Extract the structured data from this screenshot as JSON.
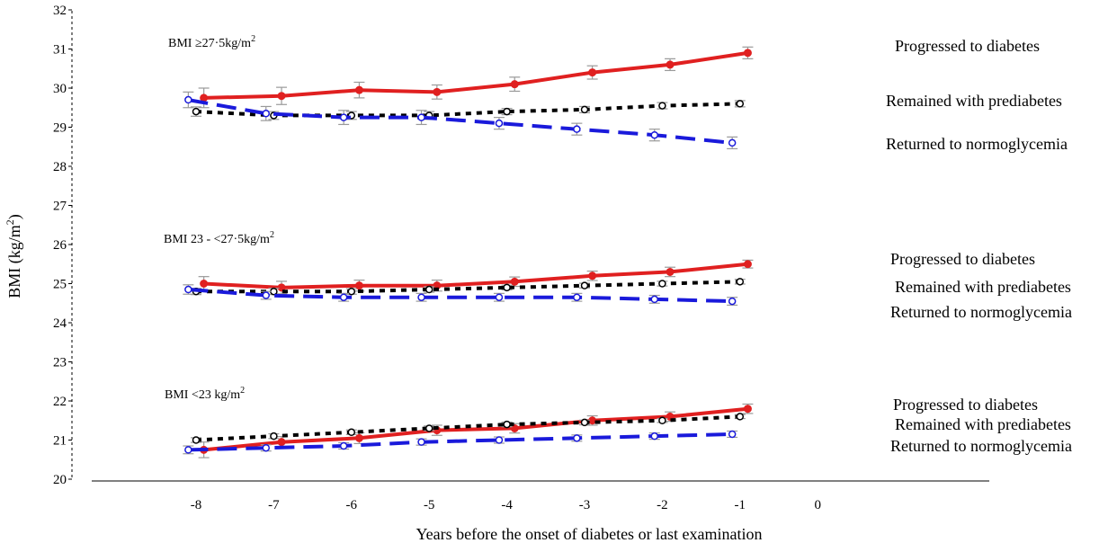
{
  "chart_data": {
    "type": "line",
    "xlabel": "Years before the onset of diabetes or last examination",
    "ylabel": "BMI (kg/m²)",
    "ylabel_text": "BMI (kg/m",
    "ylabel_sup": "2",
    "ylabel_close": ")",
    "xlim": [
      -8.5,
      0.3
    ],
    "ylim": [
      20,
      32
    ],
    "x_ticks": [
      -8,
      -7,
      -6,
      -5,
      -4,
      -3,
      -2,
      -1,
      0
    ],
    "x_tick_labels": [
      "-8",
      "-7",
      "-6",
      "-5",
      "-4",
      "-3",
      "-2",
      "-1",
      "0"
    ],
    "y_ticks": [
      20,
      21,
      22,
      23,
      24,
      25,
      26,
      27,
      28,
      29,
      30,
      31,
      32
    ],
    "y_tick_labels": [
      "20",
      "21",
      "22",
      "23",
      "24",
      "25",
      "26",
      "27",
      "28",
      "29",
      "30",
      "31",
      "32"
    ],
    "grid": false,
    "colors": {
      "progressed": "#e02020",
      "remained": "#000000",
      "returned": "#1a1adb",
      "errorbar": "#9a9a9a"
    },
    "groups": [
      {
        "label_text": "BMI ≥27·5kg/m",
        "label_sup": "2",
        "series": [
          {
            "name": "Progressed to diabetes",
            "style": "progressed",
            "x": [
              -7.9,
              -6.9,
              -5.9,
              -4.9,
              -3.9,
              -2.9,
              -1.9,
              -0.9
            ],
            "y": [
              29.75,
              29.8,
              29.95,
              29.9,
              30.1,
              30.4,
              30.6,
              30.9
            ],
            "err": [
              0.25,
              0.22,
              0.2,
              0.18,
              0.18,
              0.17,
              0.15,
              0.15
            ]
          },
          {
            "name": "Remained with prediabetes",
            "style": "remained",
            "x": [
              -8,
              -7,
              -6,
              -5,
              -4,
              -3,
              -2,
              -1
            ],
            "y": [
              29.4,
              29.3,
              29.3,
              29.3,
              29.4,
              29.45,
              29.55,
              29.6
            ],
            "err": [
              0.12,
              0.1,
              0.1,
              0.1,
              0.08,
              0.08,
              0.08,
              0.08
            ]
          },
          {
            "name": "Returned to normoglycemia",
            "style": "returned",
            "x": [
              -8.1,
              -7.1,
              -6.1,
              -5.1,
              -4.1,
              -3.1,
              -2.1,
              -1.1
            ],
            "y": [
              29.7,
              29.35,
              29.25,
              29.25,
              29.1,
              28.95,
              28.8,
              28.6
            ],
            "err": [
              0.2,
              0.18,
              0.18,
              0.18,
              0.15,
              0.15,
              0.15,
              0.15
            ]
          }
        ]
      },
      {
        "label_text": "BMI 23 - <27·5kg/m",
        "label_sup": "2",
        "series": [
          {
            "name": "Progressed to diabetes",
            "style": "progressed",
            "x": [
              -7.9,
              -6.9,
              -5.9,
              -4.9,
              -3.9,
              -2.9,
              -1.9,
              -0.9
            ],
            "y": [
              25.0,
              24.9,
              24.95,
              24.95,
              25.05,
              25.2,
              25.3,
              25.5
            ],
            "err": [
              0.18,
              0.16,
              0.14,
              0.14,
              0.12,
              0.12,
              0.12,
              0.1
            ]
          },
          {
            "name": "Remained with prediabetes",
            "style": "remained",
            "x": [
              -8,
              -7,
              -6,
              -5,
              -4,
              -3,
              -2,
              -1
            ],
            "y": [
              24.8,
              24.8,
              24.8,
              24.85,
              24.9,
              24.95,
              25.0,
              25.05
            ],
            "err": [
              0.08,
              0.08,
              0.07,
              0.07,
              0.06,
              0.06,
              0.06,
              0.06
            ]
          },
          {
            "name": "Returned to normoglycemia",
            "style": "returned",
            "x": [
              -8.1,
              -7.1,
              -6.1,
              -5.1,
              -4.1,
              -3.1,
              -2.1,
              -1.1
            ],
            "y": [
              24.85,
              24.7,
              24.65,
              24.65,
              24.65,
              24.65,
              24.6,
              24.55
            ],
            "err": [
              0.12,
              0.1,
              0.1,
              0.1,
              0.1,
              0.1,
              0.1,
              0.1
            ]
          }
        ]
      },
      {
        "label_text": "BMI <23 kg/m",
        "label_sup": "2",
        "series": [
          {
            "name": "Progressed to diabetes",
            "style": "progressed",
            "x": [
              -7.9,
              -6.9,
              -5.9,
              -4.9,
              -3.9,
              -2.9,
              -1.9,
              -0.9
            ],
            "y": [
              20.75,
              20.95,
              21.05,
              21.25,
              21.3,
              21.5,
              21.6,
              21.8
            ],
            "err": [
              0.2,
              0.14,
              0.14,
              0.13,
              0.12,
              0.12,
              0.12,
              0.12
            ]
          },
          {
            "name": "Remained with prediabetes",
            "style": "remained",
            "x": [
              -8,
              -7,
              -6,
              -5,
              -4,
              -3,
              -2,
              -1
            ],
            "y": [
              21.0,
              21.1,
              21.2,
              21.3,
              21.4,
              21.45,
              21.5,
              21.6
            ],
            "err": [
              0.06,
              0.06,
              0.06,
              0.06,
              0.06,
              0.06,
              0.05,
              0.05
            ]
          },
          {
            "name": "Returned to normoglycemia",
            "style": "returned",
            "x": [
              -8.1,
              -7.1,
              -6.1,
              -5.1,
              -4.1,
              -3.1,
              -2.1,
              -1.1
            ],
            "y": [
              20.75,
              20.8,
              20.85,
              20.95,
              21.0,
              21.05,
              21.1,
              21.15
            ],
            "err": [
              0.1,
              0.08,
              0.08,
              0.08,
              0.08,
              0.08,
              0.08,
              0.08
            ]
          }
        ]
      }
    ]
  }
}
